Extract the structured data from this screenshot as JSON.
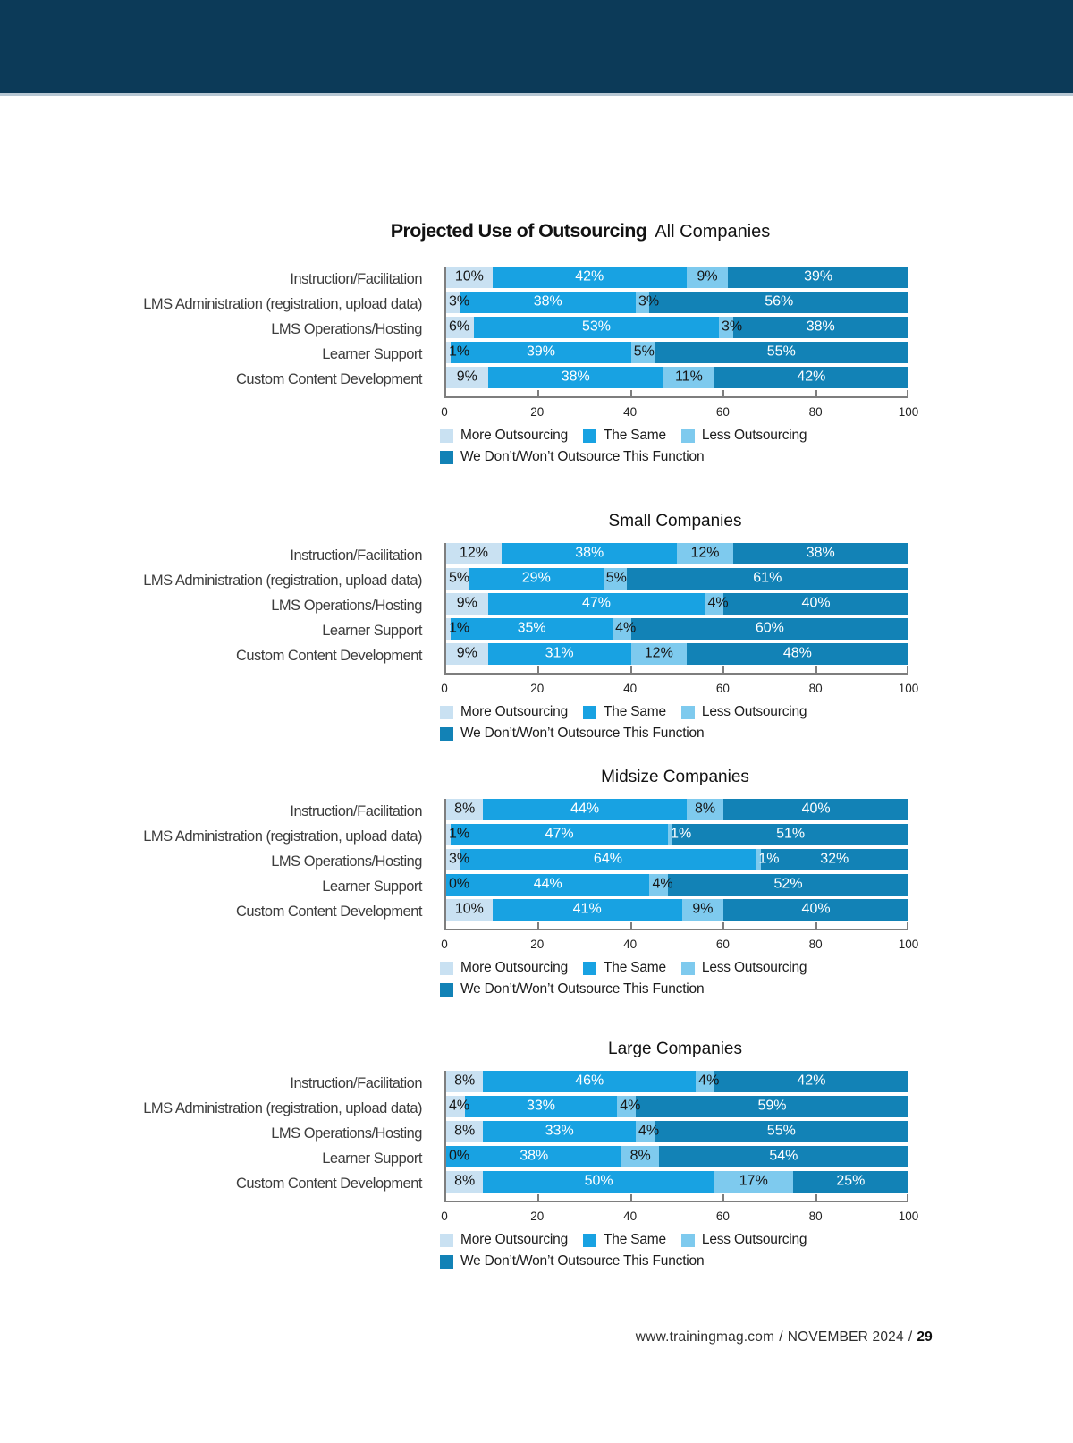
{
  "colors": {
    "header_band": "#0c3a58",
    "more_outsourcing": "#c9e1f2",
    "the_same": "#18a2e2",
    "less_outsourcing": "#7ecaee",
    "wont_outsource": "#1282b6",
    "axis": "#7e7e7e"
  },
  "footer": {
    "site": "www.trainingmag.com",
    "sep": "/",
    "issue": "NOVEMBER 2024",
    "page_number": "29"
  },
  "chart_data": [
    {
      "type": "bar",
      "stacked": true,
      "orientation": "horizontal",
      "title_bold": "Projected Use of Outsourcing",
      "title": "All Companies",
      "categories": [
        "Instruction/Facilitation",
        "LMS Administration (registration, upload data)",
        "LMS Operations/Hosting",
        "Learner Support",
        "Custom Content Development"
      ],
      "series": [
        {
          "name": "More Outsourcing",
          "color": "#c9e1f2",
          "values": [
            10,
            3,
            6,
            1,
            9
          ]
        },
        {
          "name": "The Same",
          "color": "#18a2e2",
          "values": [
            42,
            38,
            53,
            39,
            38
          ]
        },
        {
          "name": "Less Outsourcing",
          "color": "#7ecaee",
          "values": [
            9,
            3,
            3,
            5,
            11
          ]
        },
        {
          "name": "We Don’t/Won’t Outsource This Function",
          "color": "#1282b6",
          "values": [
            39,
            56,
            38,
            55,
            42
          ]
        }
      ],
      "value_suffix": "%",
      "xlim": [
        0,
        100
      ],
      "x_ticks": [
        0,
        20,
        40,
        60,
        80,
        100
      ],
      "grid": false,
      "legend_position": "bottom"
    },
    {
      "type": "bar",
      "stacked": true,
      "orientation": "horizontal",
      "title": "Small Companies",
      "categories": [
        "Instruction/Facilitation",
        "LMS Administration (registration, upload data)",
        "LMS Operations/Hosting",
        "Learner Support",
        "Custom Content Development"
      ],
      "series": [
        {
          "name": "More Outsourcing",
          "color": "#c9e1f2",
          "values": [
            12,
            5,
            9,
            1,
            9
          ]
        },
        {
          "name": "The Same",
          "color": "#18a2e2",
          "values": [
            38,
            29,
            47,
            35,
            31
          ]
        },
        {
          "name": "Less Outsourcing",
          "color": "#7ecaee",
          "values": [
            12,
            5,
            4,
            4,
            12
          ]
        },
        {
          "name": "We Don’t/Won’t Outsource This Function",
          "color": "#1282b6",
          "values": [
            38,
            61,
            40,
            60,
            48
          ]
        }
      ],
      "value_suffix": "%",
      "xlim": [
        0,
        100
      ],
      "x_ticks": [
        0,
        20,
        40,
        60,
        80,
        100
      ],
      "grid": false,
      "legend_position": "bottom"
    },
    {
      "type": "bar",
      "stacked": true,
      "orientation": "horizontal",
      "title": "Midsize Companies",
      "categories": [
        "Instruction/Facilitation",
        "LMS Administration (registration, upload data)",
        "LMS Operations/Hosting",
        "Learner Support",
        "Custom Content Development"
      ],
      "series": [
        {
          "name": "More Outsourcing",
          "color": "#c9e1f2",
          "values": [
            8,
            1,
            3,
            0,
            10
          ]
        },
        {
          "name": "The Same",
          "color": "#18a2e2",
          "values": [
            44,
            47,
            64,
            44,
            41
          ]
        },
        {
          "name": "Less Outsourcing",
          "color": "#7ecaee",
          "values": [
            8,
            1,
            1,
            4,
            9
          ]
        },
        {
          "name": "We Don’t/Won’t Outsource This Function",
          "color": "#1282b6",
          "values": [
            40,
            51,
            32,
            52,
            40
          ]
        }
      ],
      "value_suffix": "%",
      "xlim": [
        0,
        100
      ],
      "x_ticks": [
        0,
        20,
        40,
        60,
        80,
        100
      ],
      "grid": false,
      "legend_position": "bottom"
    },
    {
      "type": "bar",
      "stacked": true,
      "orientation": "horizontal",
      "title": "Large Companies",
      "categories": [
        "Instruction/Facilitation",
        "LMS Administration (registration, upload data)",
        "LMS Operations/Hosting",
        "Learner Support",
        "Custom Content Development"
      ],
      "series": [
        {
          "name": "More Outsourcing",
          "color": "#c9e1f2",
          "values": [
            8,
            4,
            8,
            0,
            8
          ]
        },
        {
          "name": "The Same",
          "color": "#18a2e2",
          "values": [
            46,
            33,
            33,
            38,
            50
          ]
        },
        {
          "name": "Less Outsourcing",
          "color": "#7ecaee",
          "values": [
            4,
            4,
            4,
            8,
            17
          ]
        },
        {
          "name": "We Don’t/Won’t Outsource This Function",
          "color": "#1282b6",
          "values": [
            42,
            59,
            55,
            54,
            25
          ]
        }
      ],
      "value_suffix": "%",
      "xlim": [
        0,
        100
      ],
      "x_ticks": [
        0,
        20,
        40,
        60,
        80,
        100
      ],
      "grid": false,
      "legend_position": "bottom"
    }
  ]
}
